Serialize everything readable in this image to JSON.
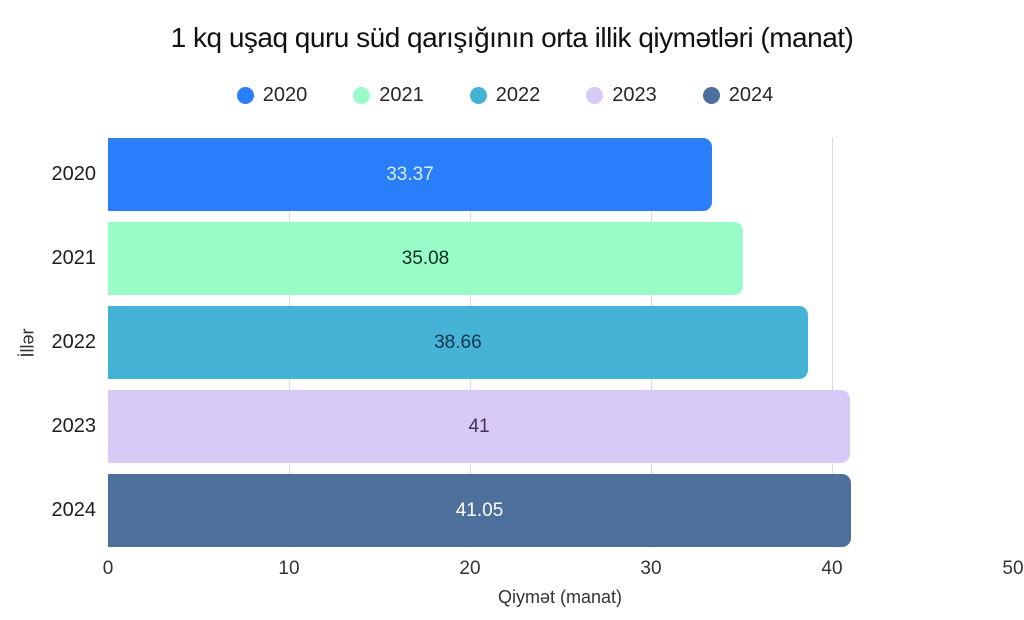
{
  "chart_data": {
    "type": "bar",
    "orientation": "horizontal",
    "title": "1 kq uşaq quru süd qarışığının orta illik qiymətləri (manat)",
    "categories": [
      "2020",
      "2021",
      "2022",
      "2023",
      "2024"
    ],
    "values": [
      33.37,
      35.08,
      38.66,
      41,
      41.05
    ],
    "value_labels": [
      "33.37",
      "35.08",
      "38.66",
      "41",
      "41.05"
    ],
    "bar_colors": [
      "#2b7ef9",
      "#99fbc8",
      "#44b3d5",
      "#d8caf6",
      "#4c6f9b"
    ],
    "value_label_colors": [
      "#d9ecfc",
      "#0c301e",
      "#12344f",
      "#3f3358",
      "#ffffff"
    ],
    "legend_entries": [
      "2020",
      "2021",
      "2022",
      "2023",
      "2024"
    ],
    "legend_position": "top",
    "xlabel": "Qiymət (manat)",
    "ylabel": "İllər",
    "xlim": [
      0,
      50
    ],
    "x_ticks": [
      0,
      10,
      20,
      30,
      40,
      50
    ],
    "gridlines": [
      10,
      20,
      30,
      40
    ],
    "grid": "vertical",
    "background_color": "#ffffff",
    "gridline_color": "#dcdcdc"
  }
}
